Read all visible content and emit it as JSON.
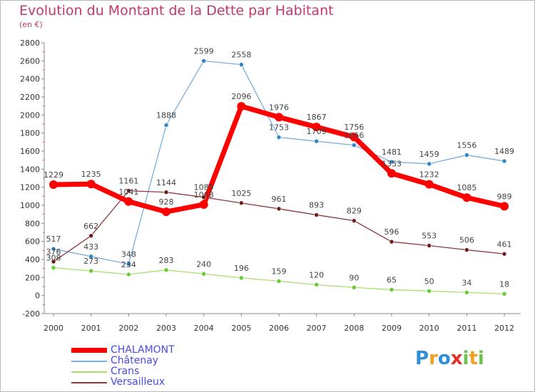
{
  "title": "Evolution du Montant de la Dette par Habitant",
  "subtitle": "(en €)",
  "logo": {
    "text": "Proxiti",
    "letters": [
      {
        "ch": "P",
        "color": "#2f8fd8"
      },
      {
        "ch": "r",
        "color": "#f0a020"
      },
      {
        "ch": "o",
        "color": "#2f8fd8"
      },
      {
        "ch": "x",
        "color": "#e8302a"
      },
      {
        "ch": "i",
        "color": "#6cc24a"
      },
      {
        "ch": "t",
        "color": "#f0a020"
      },
      {
        "ch": "i",
        "color": "#6cc24a"
      }
    ]
  },
  "chart_data": {
    "type": "line",
    "x": [
      2000,
      2001,
      2002,
      2003,
      2004,
      2005,
      2006,
      2007,
      2008,
      2009,
      2010,
      2011,
      2012
    ],
    "ylim": [
      -200,
      2800
    ],
    "yticks": [
      -200,
      0,
      200,
      400,
      600,
      800,
      1000,
      1200,
      1400,
      1600,
      1800,
      2000,
      2200,
      2400,
      2600,
      2800
    ],
    "grid": false,
    "legend_position": "bottom-left",
    "series": [
      {
        "name": "CHALAMONT",
        "color": "#ff0000",
        "marker": "#ff0000",
        "width": 7,
        "values": [
          1229,
          1235,
          1041,
          928,
          1008,
          2096,
          1976,
          1867,
          1756,
          1353,
          1232,
          1085,
          989
        ],
        "labels": [
          "1229",
          "1235",
          "1041",
          "928",
          "1008",
          "2096",
          "1976",
          "1867",
          "1756",
          "1353",
          "1232",
          "1085",
          "989"
        ]
      },
      {
        "name": "Châtenay",
        "color": "#79aee0",
        "marker": "#2e86c8",
        "width": 1.3,
        "values": [
          517,
          433,
          348,
          1888,
          2599,
          2558,
          1753,
          1709,
          1666,
          1481,
          1459,
          1556,
          1489
        ],
        "labels": [
          "517",
          "433",
          "348",
          "1888",
          "2599",
          "2558",
          "1753",
          "1709",
          "1666",
          "1481",
          "1459",
          "1556",
          "1489"
        ]
      },
      {
        "name": "Crans",
        "color": "#a8e070",
        "marker": "#66cc33",
        "width": 1.3,
        "values": [
          308,
          273,
          234,
          283,
          240,
          196,
          159,
          120,
          90,
          65,
          50,
          34,
          18
        ],
        "labels": [
          "308",
          "273",
          "234",
          "283",
          "240",
          "196",
          "159",
          "120",
          "90",
          "65",
          "50",
          "34",
          "18"
        ]
      },
      {
        "name": "Versailleux",
        "color": "#8b3a3a",
        "marker": "#6e1c1c",
        "width": 1.3,
        "values": [
          376,
          662,
          1161,
          1144,
          1089,
          1025,
          961,
          893,
          829,
          596,
          553,
          506,
          461
        ],
        "labels": [
          "376",
          "662",
          "1161",
          "1144",
          "1089",
          "1025",
          "961",
          "893",
          "829",
          "596",
          "553",
          "506",
          "461"
        ]
      }
    ]
  }
}
